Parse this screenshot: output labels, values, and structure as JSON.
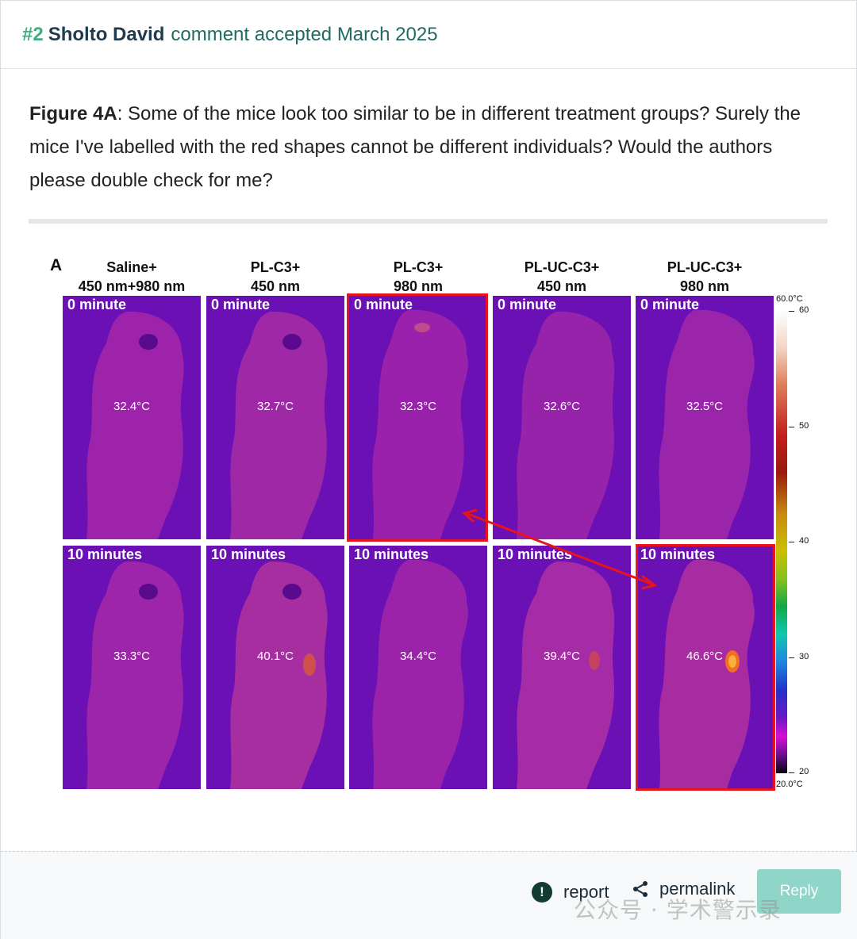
{
  "header": {
    "number": "#2",
    "author": "Sholto David",
    "status": "comment accepted March 2025"
  },
  "comment": {
    "label": "Figure 4A",
    "text": ": Some of the mice look too similar to be in different treatment groups? Surely the mice I've labelled with the red shapes cannot be different individuals? Would the authors please double check for me?"
  },
  "figure": {
    "panel_letter": "A",
    "columns": [
      {
        "line1": "Saline+",
        "line2": "450 nm+980 nm"
      },
      {
        "line1": "PL-C3+",
        "line2": "450 nm"
      },
      {
        "line1": "PL-C3+",
        "line2": "980 nm"
      },
      {
        "line1": "PL-UC-C3+",
        "line2": "450 nm"
      },
      {
        "line1": "PL-UC-C3+",
        "line2": "980 nm"
      }
    ],
    "row_labels": [
      "0 minute",
      "10 minutes"
    ],
    "temps_row0": [
      "32.4°C",
      "32.7°C",
      "32.3°C",
      "32.6°C",
      "32.5°C"
    ],
    "temps_row1": [
      "33.3°C",
      "40.1°C",
      "34.4°C",
      "39.4°C",
      "46.6°C"
    ],
    "scale": {
      "top": "60.0°C",
      "bottom": "20.0°C",
      "ticks": [
        "60",
        "50",
        "40",
        "30",
        "20"
      ]
    },
    "annotation_color": "#e8141c"
  },
  "footer": {
    "report_label": "report",
    "permalink_label": "permalink",
    "reply_label": "Reply",
    "watermark": "公众号 · 学术警示录"
  }
}
